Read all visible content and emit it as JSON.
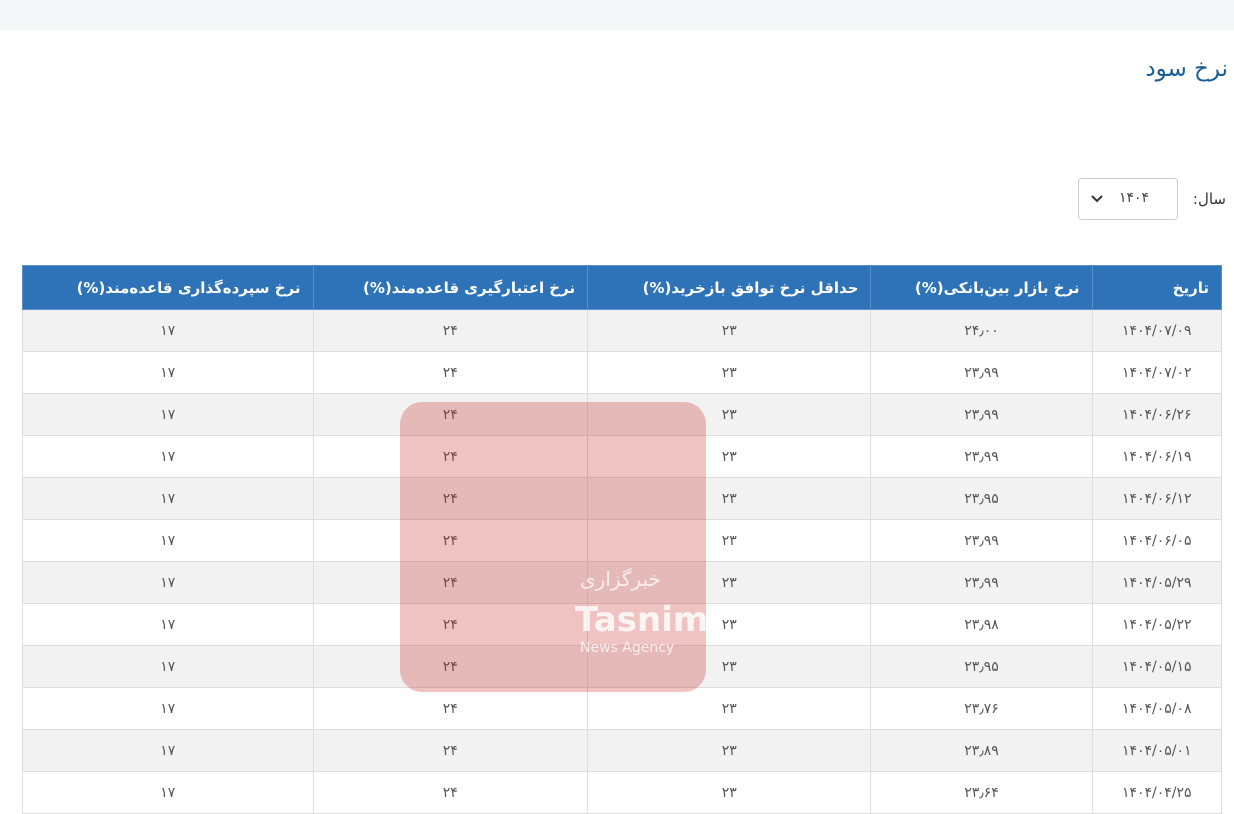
{
  "header": {
    "title": "نرخ سود"
  },
  "filter": {
    "label": "سال:",
    "value": "۱۴۰۴"
  },
  "watermark": {
    "line1": "خبرگزاری",
    "line2": "Tasnim",
    "line3": "News Agency"
  },
  "table": {
    "columns": [
      "تاریخ",
      "نرخ بازار بین‌بانکی(%)",
      "حداقل نرخ توافق بازخرید(%)",
      "نرخ اعتبارگیری قاعده‌مند(%)",
      "نرخ سپرده‌گذاری قاعده‌مند(%)"
    ],
    "rows": [
      [
        "۱۴۰۴/۰۷/۰۹",
        "۲۴٫۰۰",
        "۲۳",
        "۲۴",
        "۱۷"
      ],
      [
        "۱۴۰۴/۰۷/۰۲",
        "۲۳٫۹۹",
        "۲۳",
        "۲۴",
        "۱۷"
      ],
      [
        "۱۴۰۴/۰۶/۲۶",
        "۲۳٫۹۹",
        "۲۳",
        "۲۴",
        "۱۷"
      ],
      [
        "۱۴۰۴/۰۶/۱۹",
        "۲۳٫۹۹",
        "۲۳",
        "۲۴",
        "۱۷"
      ],
      [
        "۱۴۰۴/۰۶/۱۲",
        "۲۳٫۹۵",
        "۲۳",
        "۲۴",
        "۱۷"
      ],
      [
        "۱۴۰۴/۰۶/۰۵",
        "۲۳٫۹۹",
        "۲۳",
        "۲۴",
        "۱۷"
      ],
      [
        "۱۴۰۴/۰۵/۲۹",
        "۲۳٫۹۹",
        "۲۳",
        "۲۴",
        "۱۷"
      ],
      [
        "۱۴۰۴/۰۵/۲۲",
        "۲۳٫۹۸",
        "۲۳",
        "۲۴",
        "۱۷"
      ],
      [
        "۱۴۰۴/۰۵/۱۵",
        "۲۳٫۹۵",
        "۲۳",
        "۲۴",
        "۱۷"
      ],
      [
        "۱۴۰۴/۰۵/۰۸",
        "۲۳٫۷۶",
        "۲۳",
        "۲۴",
        "۱۷"
      ],
      [
        "۱۴۰۴/۰۵/۰۱",
        "۲۳٫۸۹",
        "۲۳",
        "۲۴",
        "۱۷"
      ],
      [
        "۱۴۰۴/۰۴/۲۵",
        "۲۳٫۶۴",
        "۲۳",
        "۲۴",
        "۱۷"
      ]
    ]
  }
}
